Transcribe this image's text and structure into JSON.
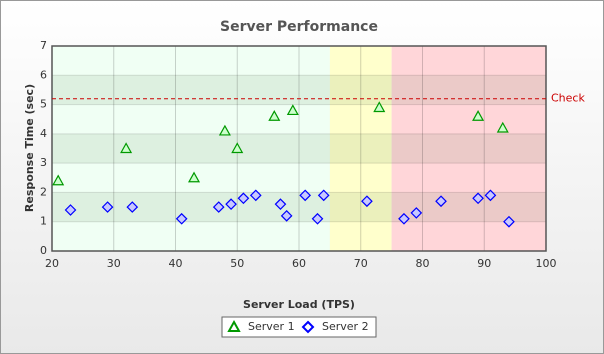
{
  "chart_data": {
    "type": "scatter",
    "title": "Server Performance",
    "xlabel": "Server Load (TPS)",
    "ylabel": "Response Time (sec)",
    "xlim": [
      20,
      100
    ],
    "xticks": [
      20,
      30,
      40,
      50,
      60,
      70,
      80,
      90,
      100
    ],
    "ylim": [
      0,
      7
    ],
    "yticks": [
      0,
      1,
      2,
      3,
      4,
      5,
      6,
      7
    ],
    "grid": true,
    "zones": [
      {
        "from": 20,
        "to": 65,
        "color": "#f0fff4"
      },
      {
        "from": 65,
        "to": 75,
        "color": "#ffffcc"
      },
      {
        "from": 75,
        "to": 100,
        "color": "#ffd6d9"
      }
    ],
    "trendline": {
      "value": 5.2,
      "label": "Check",
      "color": "#cc0000"
    },
    "series": [
      {
        "name": "Server 1",
        "color": "#009900",
        "marker": "triangle",
        "x": [
          21,
          32,
          43,
          48,
          50,
          56,
          59,
          73,
          89,
          93
        ],
        "values": [
          2.4,
          3.5,
          2.5,
          4.1,
          3.5,
          4.6,
          4.8,
          4.9,
          4.6,
          4.2
        ]
      },
      {
        "name": "Server 2",
        "color": "#0000ff",
        "marker": "diamond",
        "x": [
          23,
          29,
          33,
          41,
          47,
          49,
          51,
          53,
          57,
          58,
          61,
          63,
          64,
          71,
          77,
          79,
          83,
          89,
          91,
          94
        ],
        "values": [
          1.4,
          1.5,
          1.5,
          1.1,
          1.5,
          1.6,
          1.8,
          1.9,
          1.6,
          1.2,
          1.9,
          1.1,
          1.9,
          1.7,
          1.1,
          1.3,
          1.7,
          1.8,
          1.9,
          1.0
        ]
      }
    ],
    "legend": "bottom"
  }
}
